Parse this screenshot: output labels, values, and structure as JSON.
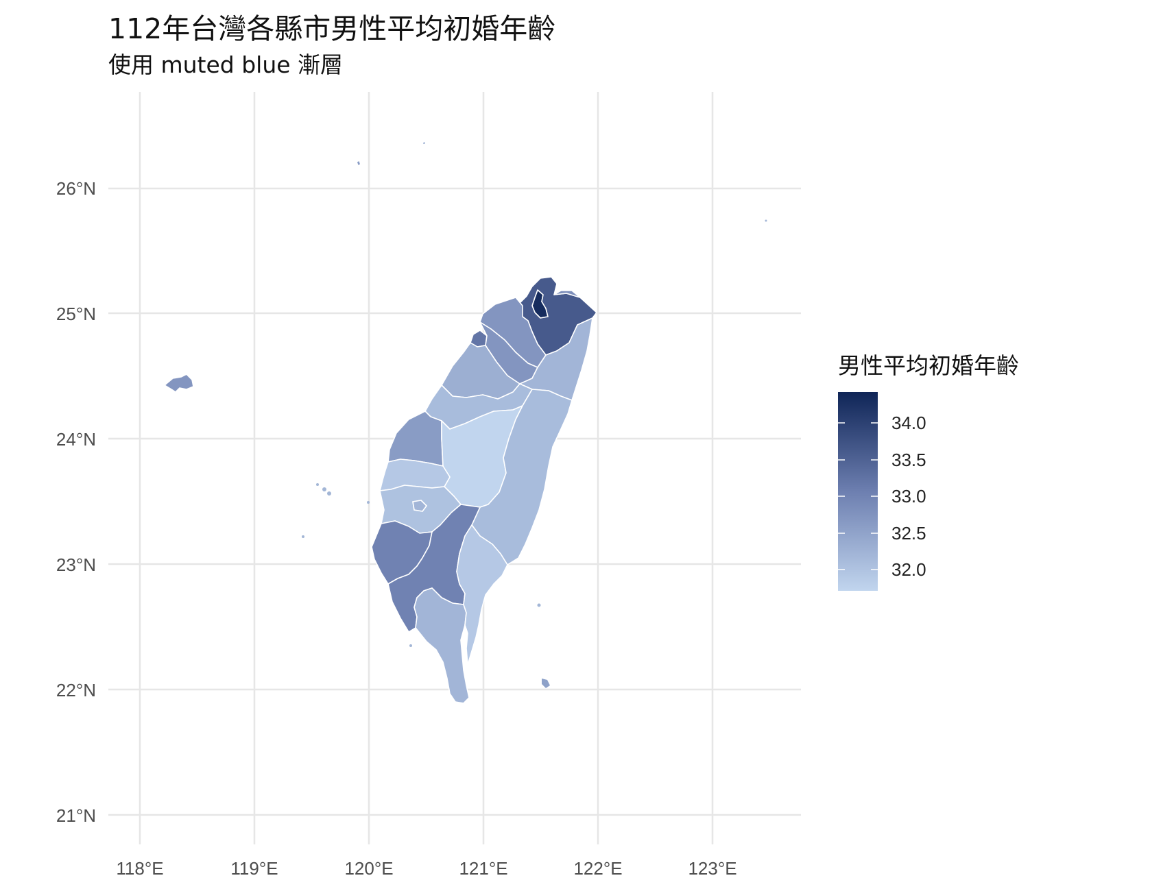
{
  "title": "112年台灣各縣市男性平均初婚年齡",
  "subtitle": "使用 muted blue 漸層",
  "map": {
    "x_ticks": [
      "118°E",
      "119°E",
      "120°E",
      "121°E",
      "122°E",
      "123°E"
    ],
    "y_ticks": [
      "26°N",
      "25°N",
      "24°N",
      "23°N",
      "22°N",
      "21°N"
    ],
    "lon_range": [
      117.8,
      123.8
    ],
    "lat_range": [
      20.8,
      26.75
    ],
    "grid": true
  },
  "legend": {
    "title": "男性平均初婚年齡",
    "labels": [
      "34.0",
      "33.5",
      "33.0",
      "32.5",
      "32.0"
    ],
    "values": [
      34.0,
      33.5,
      33.0,
      32.5,
      32.0
    ],
    "range": [
      31.7,
      34.4
    ],
    "color_low": "#c1d5ee",
    "color_high": "#0f2557"
  },
  "chart_data": {
    "type": "heatmap",
    "title": "112年台灣各縣市男性平均初婚年齡",
    "subtitle": "使用 muted blue 漸層",
    "legend_title": "男性平均初婚年齡",
    "regions": [
      {
        "value": 34.3
      },
      {
        "value": 33.6
      },
      {
        "value": 32.8
      },
      {
        "value": 32.7
      },
      {
        "value": 33.2
      },
      {
        "value": 32.7
      },
      {
        "value": 32.3
      },
      {
        "value": 32.2
      },
      {
        "value": 32.1
      },
      {
        "value": 32.6
      },
      {
        "value": 31.7
      },
      {
        "value": 31.9
      },
      {
        "value": 32.0
      },
      {
        "value": 32.2
      },
      {
        "value": 32.1
      },
      {
        "value": 33.0
      },
      {
        "value": 33.0
      },
      {
        "value": 32.2
      },
      {
        "value": 31.9
      },
      {
        "value": 32.7
      },
      {
        "value": 32.6
      },
      {
        "value": 32.3
      }
    ]
  }
}
